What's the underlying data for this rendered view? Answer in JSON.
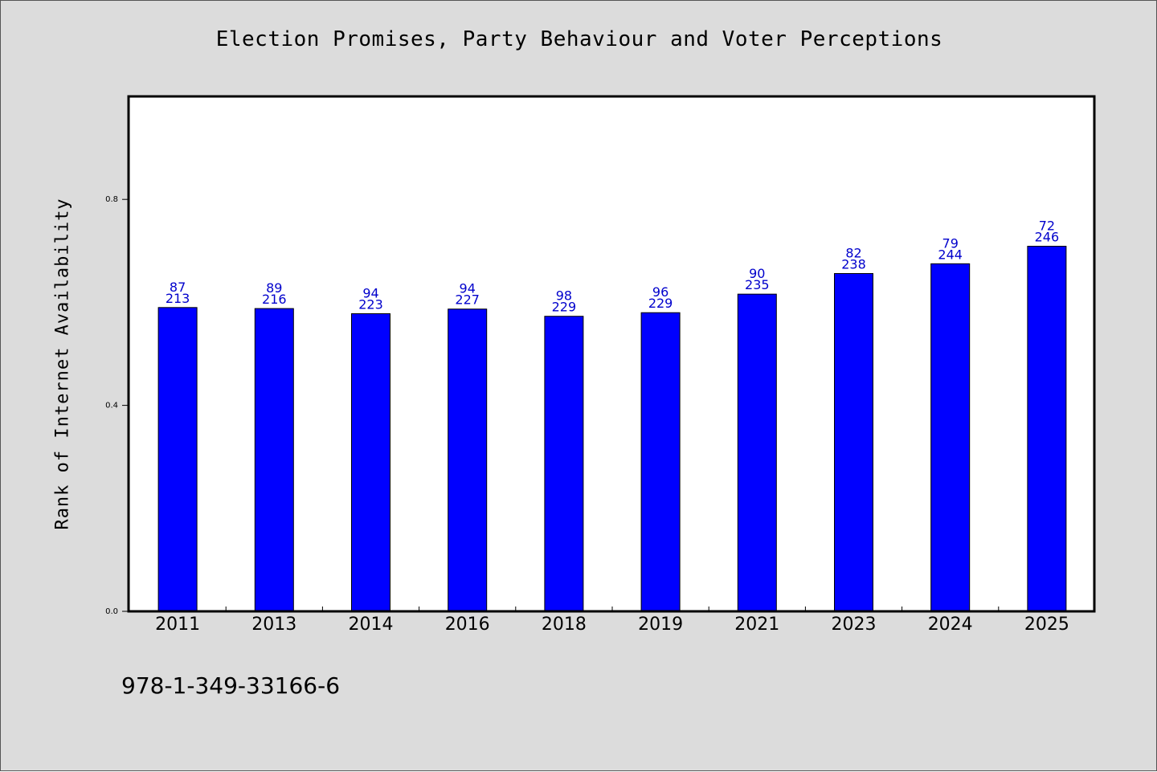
{
  "chart_data": {
    "type": "bar",
    "title": "Election Promises, Party Behaviour and Voter Perceptions",
    "xlabel": "",
    "ylabel": "Rank of Internet Availability",
    "ylim": [
      0.0,
      1.0
    ],
    "yticks": [
      0.0,
      0.4,
      0.8
    ],
    "ytick_labels": [
      "0.0",
      "0.4",
      "0.8"
    ],
    "categories": [
      "2011",
      "2013",
      "2014",
      "2016",
      "2018",
      "2019",
      "2021",
      "2023",
      "2024",
      "2025"
    ],
    "values": [
      0.59,
      0.588,
      0.578,
      0.587,
      0.573,
      0.58,
      0.616,
      0.656,
      0.675,
      0.709
    ],
    "label_top": [
      "87",
      "89",
      "94",
      "94",
      "98",
      "96",
      "90",
      "82",
      "79",
      "72"
    ],
    "label_bottom": [
      "213",
      "216",
      "223",
      "227",
      "229",
      "229",
      "235",
      "238",
      "244",
      "246"
    ],
    "bar_color": "#0000ff",
    "label_color": "#0000cc",
    "grid": false,
    "legend": "none",
    "footnote": "978-1-349-33166-6"
  }
}
